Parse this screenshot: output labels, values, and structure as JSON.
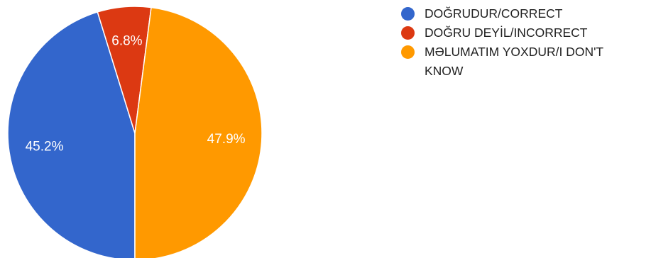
{
  "chart_data": {
    "type": "pie",
    "title": "",
    "start_angle_deg": 90,
    "direction": "clockwise",
    "legend_position": "right",
    "series": [
      {
        "name": "DOĞRUDUR/CORRECT",
        "value": 45.2,
        "label": "45.2%",
        "color": "#3366cc"
      },
      {
        "name": "DOĞRU DEYİL/INCORRECT",
        "value": 6.8,
        "label": "6.8%",
        "color": "#dc3912"
      },
      {
        "name": "MƏLUMATIM YOXDUR/I DON'T KNOW",
        "value": 47.9,
        "label": "47.9%",
        "color": "#ff9900"
      }
    ]
  }
}
